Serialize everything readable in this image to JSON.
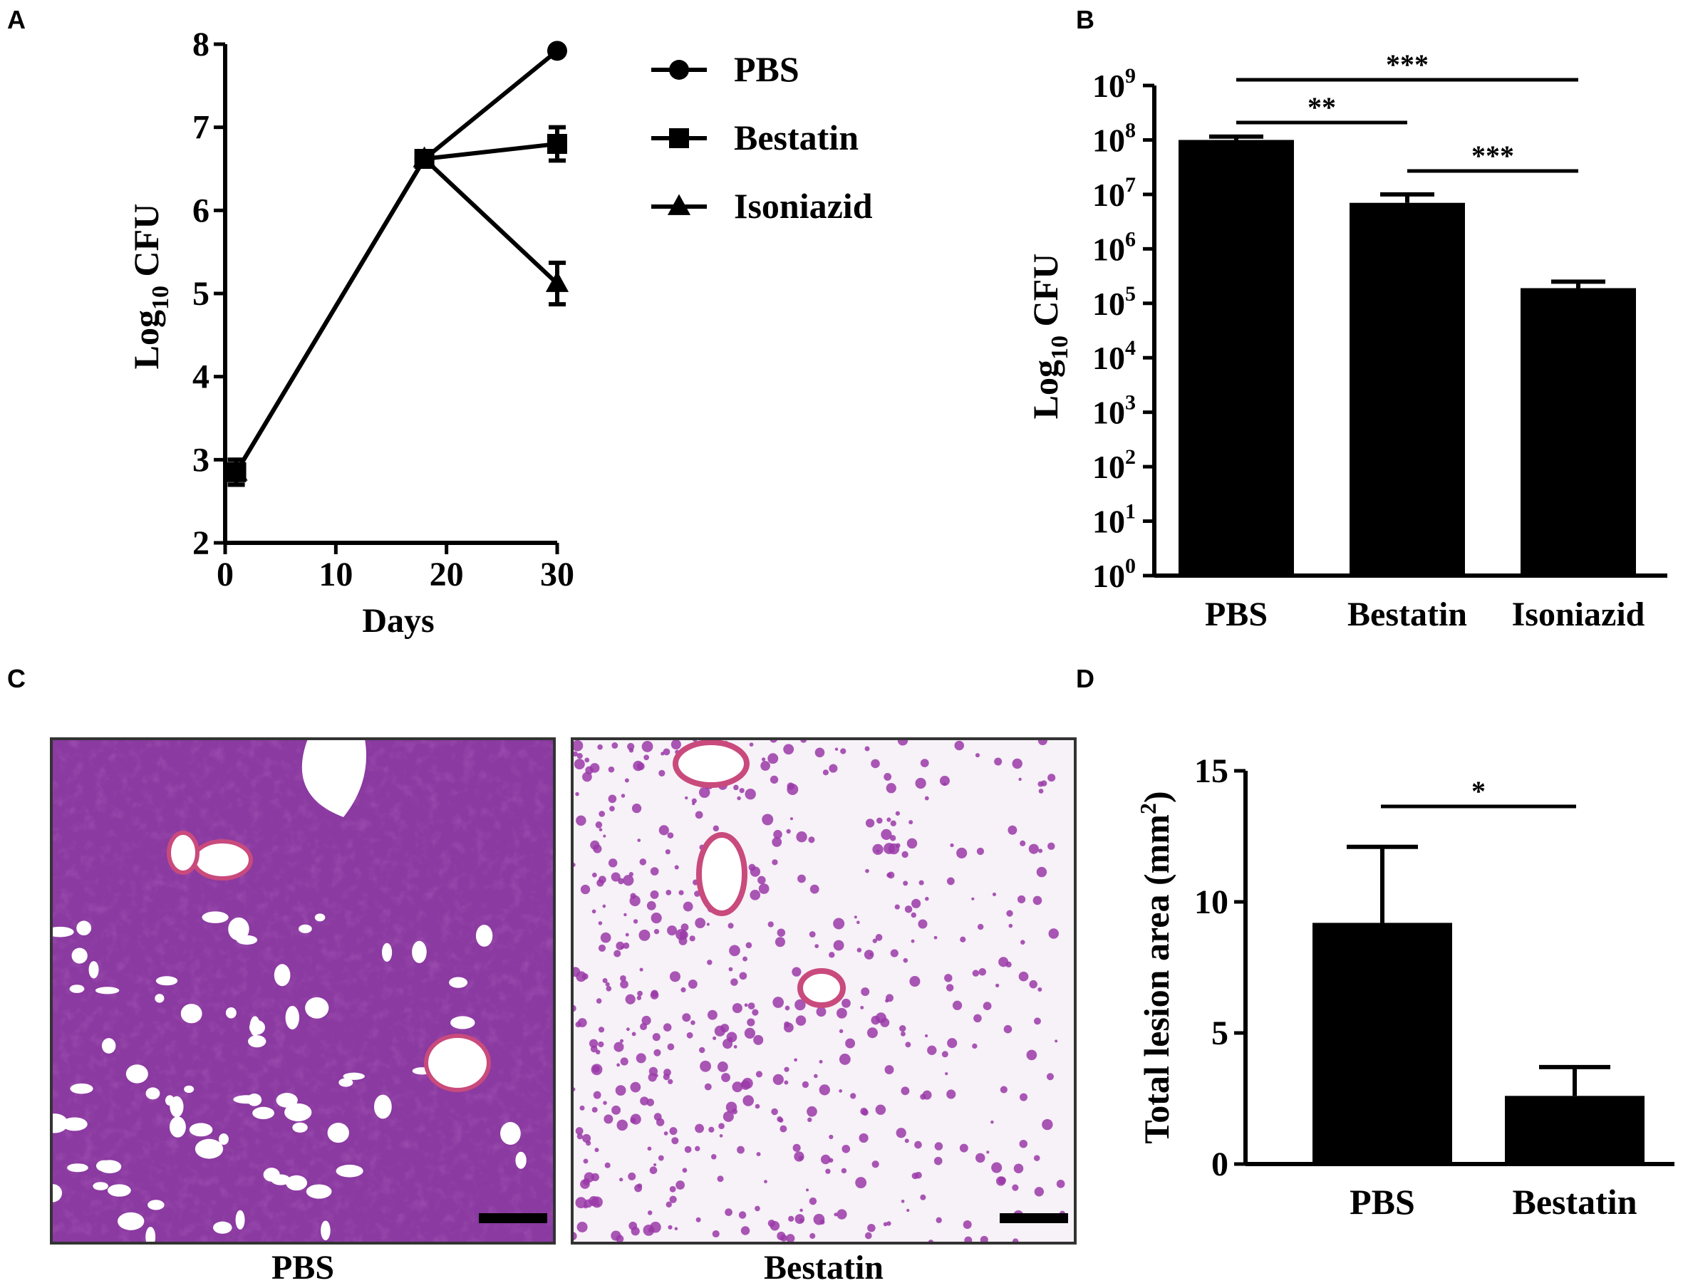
{
  "panels": {
    "a": {
      "letter": "A"
    },
    "b": {
      "letter": "B"
    },
    "c": {
      "letter": "C"
    },
    "d": {
      "letter": "D"
    }
  },
  "chart_data": [
    {
      "id": "a",
      "type": "line",
      "xlabel": "Days",
      "ylabel_main": "Log",
      "ylabel_sub": "10",
      "ylabel_tail": " CFU",
      "xlim": [
        0,
        30
      ],
      "ylim": [
        2,
        8
      ],
      "xticks": [
        0,
        10,
        20,
        30
      ],
      "yticks": [
        2,
        3,
        4,
        5,
        6,
        7,
        8
      ],
      "legend_position": "right",
      "series": [
        {
          "name": "PBS",
          "marker": "circle",
          "x": [
            1,
            18,
            30
          ],
          "y": [
            2.85,
            6.62,
            7.92
          ],
          "err": [
            0.15,
            0.08,
            0.03
          ]
        },
        {
          "name": "Bestatin",
          "marker": "square",
          "x": [
            1,
            18,
            30
          ],
          "y": [
            2.85,
            6.62,
            6.8
          ],
          "err": [
            0.15,
            0.08,
            0.2
          ]
        },
        {
          "name": "Isoniazid",
          "marker": "triangle",
          "x": [
            1,
            18,
            30
          ],
          "y": [
            2.85,
            6.62,
            5.12
          ],
          "err": [
            0.15,
            0.08,
            0.25
          ]
        }
      ]
    },
    {
      "id": "b",
      "type": "bar",
      "scale": "log",
      "ylabel_main": "Log",
      "ylabel_sub": "10",
      "ylabel_tail": " CFU",
      "ylim_exponent": [
        0,
        9
      ],
      "ytick_base": "10",
      "yticks_exponent": [
        "0",
        "1",
        "2",
        "3",
        "4",
        "5",
        "6",
        "7",
        "8",
        "9"
      ],
      "categories": [
        "PBS",
        "Bestatin",
        "Isoniazid"
      ],
      "values": [
        100000000,
        7000000,
        190000
      ],
      "err_upper": [
        115000000,
        10000000,
        250000
      ],
      "significance": [
        {
          "from": 0,
          "to": 1,
          "label": "**"
        },
        {
          "from": 0,
          "to": 2,
          "label": "***"
        },
        {
          "from": 1,
          "to": 2,
          "label": "***"
        }
      ]
    },
    {
      "id": "d",
      "type": "bar",
      "ylabel_main": "Total lesion area (mm",
      "ylabel_sup": "2",
      "ylabel_tail": ")",
      "ylim": [
        0,
        15
      ],
      "yticks": [
        0,
        5,
        10,
        15
      ],
      "categories": [
        "PBS",
        "Bestatin"
      ],
      "values": [
        9.2,
        2.6
      ],
      "err_upper": [
        12.1,
        3.7
      ],
      "significance": [
        {
          "from": 0,
          "to": 1,
          "label": "*"
        }
      ]
    }
  ],
  "histology": {
    "images": [
      {
        "caption": "PBS",
        "stain_color": "#8a3aa0",
        "tissue_density": "dense"
      },
      {
        "caption": "Bestatin",
        "stain_color": "#9a3aa8",
        "tissue_density": "sparse"
      }
    ]
  }
}
